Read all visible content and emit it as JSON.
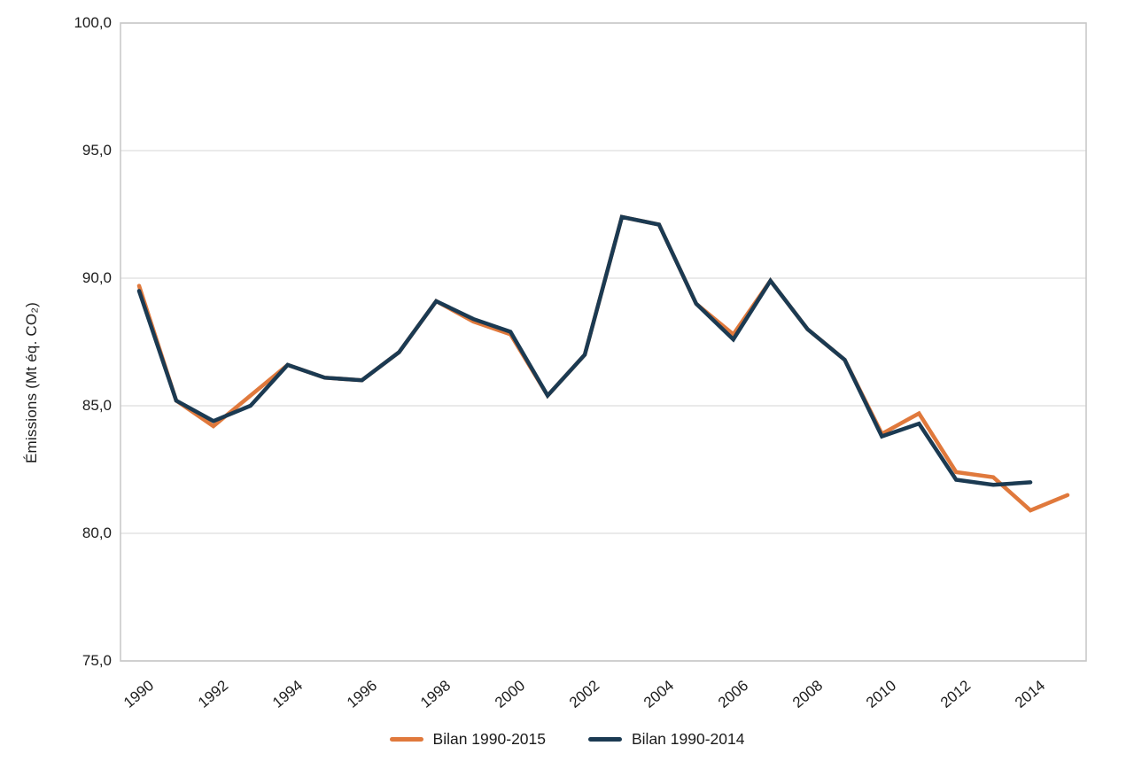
{
  "chart_data": {
    "type": "line",
    "title": "",
    "xlabel": "",
    "ylabel": "Émissions (Mt éq. CO₂)",
    "ylim": [
      75,
      100
    ],
    "ytick_values": [
      100,
      95,
      90,
      85,
      80,
      75
    ],
    "ytick_labels": [
      "100,0",
      "95,0",
      "90,0",
      "85,0",
      "80,0",
      "75,0"
    ],
    "x": [
      1990,
      1991,
      1992,
      1993,
      1994,
      1995,
      1996,
      1997,
      1998,
      1999,
      2000,
      2001,
      2002,
      2003,
      2004,
      2005,
      2006,
      2007,
      2008,
      2009,
      2010,
      2011,
      2012,
      2013,
      2014,
      2015
    ],
    "xtick_labels": [
      "1990",
      "1992",
      "1994",
      "1996",
      "1998",
      "2000",
      "2002",
      "2004",
      "2006",
      "2008",
      "2010",
      "2012",
      "2014"
    ],
    "xtick_indices": [
      0,
      2,
      4,
      6,
      8,
      10,
      12,
      14,
      16,
      18,
      20,
      22,
      24
    ],
    "grid": "horizontal",
    "legend_position": "bottom-center",
    "frame_color": "#c9c9c9",
    "grid_color": "#e4e4e4",
    "series": [
      {
        "name": "Bilan 1990-2015",
        "color": "#E0793C",
        "values": [
          89.7,
          85.2,
          84.2,
          85.4,
          86.6,
          86.1,
          86.0,
          87.1,
          89.1,
          88.3,
          87.8,
          85.4,
          87.0,
          92.4,
          92.1,
          89.0,
          87.8,
          89.9,
          88.0,
          86.8,
          83.9,
          84.7,
          82.4,
          82.2,
          80.9,
          81.5
        ]
      },
      {
        "name": "Bilan 1990-2014",
        "color": "#1B3A52",
        "values": [
          89.5,
          85.2,
          84.4,
          85.0,
          86.6,
          86.1,
          86.0,
          87.1,
          89.1,
          88.4,
          87.9,
          85.4,
          87.0,
          92.4,
          92.1,
          89.0,
          87.6,
          89.9,
          88.0,
          86.8,
          83.8,
          84.3,
          82.1,
          81.9,
          82.0,
          null
        ]
      }
    ]
  }
}
